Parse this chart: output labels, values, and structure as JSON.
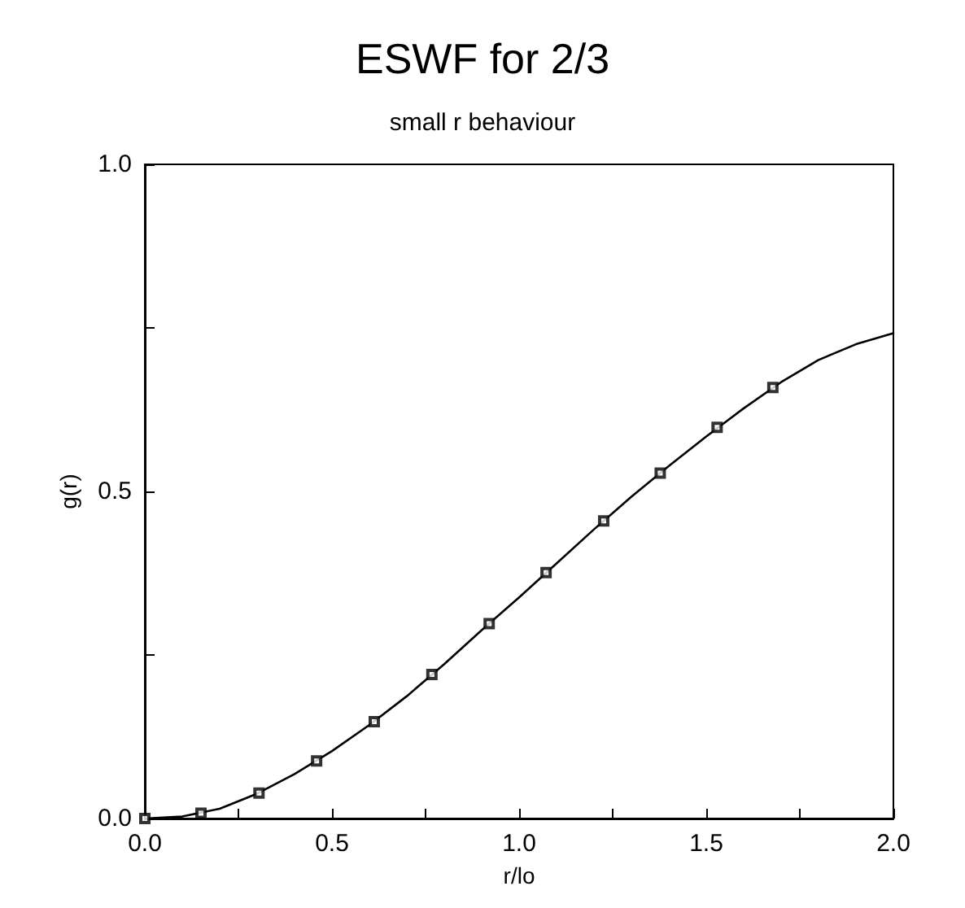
{
  "chart_data": {
    "type": "line",
    "title": "ESWF for 2/3",
    "subtitle": "small r behaviour",
    "xlabel": "r/lo",
    "ylabel": "g(r)",
    "xlim": [
      0,
      2
    ],
    "ylim": [
      0,
      1
    ],
    "xticks": [
      {
        "value": 0,
        "label": "0.0"
      },
      {
        "value": 0.25,
        "label": null
      },
      {
        "value": 0.5,
        "label": "0.5"
      },
      {
        "value": 0.75,
        "label": null
      },
      {
        "value": 1,
        "label": "1.0"
      },
      {
        "value": 1.25,
        "label": null
      },
      {
        "value": 1.5,
        "label": "1.5"
      },
      {
        "value": 1.75,
        "label": null
      },
      {
        "value": 2,
        "label": "2.0"
      }
    ],
    "yticks": [
      {
        "value": 0,
        "label": "0.0"
      },
      {
        "value": 0.25,
        "label": null
      },
      {
        "value": 0.5,
        "label": "0.5"
      },
      {
        "value": 0.75,
        "label": null
      },
      {
        "value": 1,
        "label": "1.0"
      }
    ],
    "grid": false,
    "series": [
      {
        "color": "#000000",
        "marker": "none",
        "line_style": "solid",
        "x": [
          0,
          0.1,
          0.2,
          0.3,
          0.4,
          0.5,
          0.6,
          0.7,
          0.8,
          0.9,
          1.0,
          1.1,
          1.2,
          1.3,
          1.4,
          1.5,
          1.6,
          1.7,
          1.8,
          1.9,
          2.0
        ],
        "values": [
          0,
          0.003,
          0.015,
          0.038,
          0.068,
          0.103,
          0.143,
          0.187,
          0.236,
          0.288,
          0.338,
          0.39,
          0.442,
          0.492,
          0.539,
          0.584,
          0.627,
          0.667,
          0.701,
          0.725,
          0.742
        ]
      },
      {
        "type": "scatter",
        "color": "#000000",
        "marker": "square",
        "x": [
          0,
          0.15,
          0.305,
          0.459,
          0.613,
          0.767,
          0.92,
          1.072,
          1.226,
          1.377,
          1.529,
          1.678
        ],
        "values": [
          0,
          0.008,
          0.039,
          0.088,
          0.148,
          0.22,
          0.298,
          0.376,
          0.455,
          0.528,
          0.598,
          0.659
        ]
      }
    ]
  }
}
